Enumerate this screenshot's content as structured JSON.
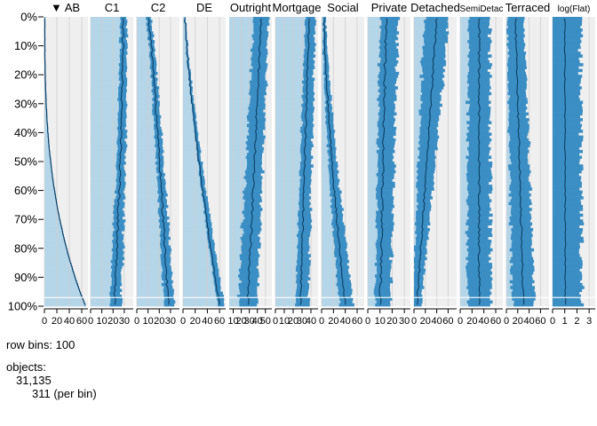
{
  "chart_data": {
    "type": "tableplot",
    "sorted_by": "AB",
    "sort_arrow": "▼",
    "row_bins": 100,
    "y_ticks": [
      "0%",
      "10%",
      "20%",
      "30%",
      "40%",
      "50%",
      "60%",
      "70%",
      "80%",
      "90%",
      "100%"
    ],
    "colors": {
      "bar": "#3a8ec4",
      "light_bar": "#b5d5e8",
      "mean_line": "#0d3e63",
      "panel_bg": "#efefef",
      "grid": "#cfcfcf",
      "white_line": "#ffffff"
    },
    "columns": [
      {
        "name": "AB",
        "ticks": [
          "0",
          "20",
          "40",
          "60"
        ],
        "domain": [
          0,
          70
        ],
        "mean_start": 0.5,
        "mean_end": 66,
        "shape": 2.8,
        "spread": 0.6,
        "sd_start": 0.5,
        "sd_end": 1,
        "noise": 0.2
      },
      {
        "name": "C1",
        "ticks": [
          "0",
          "10",
          "20",
          "30"
        ],
        "domain": [
          0,
          38
        ],
        "mean_start": 29,
        "mean_end": 21,
        "shape": 1.6,
        "spread": 0.7,
        "sd_start": 3.5,
        "sd_end": 6,
        "noise": 0.9
      },
      {
        "name": "C2",
        "ticks": [
          "0",
          "10",
          "20",
          "30"
        ],
        "domain": [
          0,
          38
        ],
        "mean_start": 10,
        "mean_end": 28,
        "shape": 0.8,
        "spread": 0.8,
        "sd_start": 2.5,
        "sd_end": 5,
        "noise": 0.9
      },
      {
        "name": "DE",
        "ticks": [
          "0",
          "20",
          "40",
          "60"
        ],
        "domain": [
          0,
          70
        ],
        "mean_start": 3,
        "mean_end": 60,
        "shape": 1.3,
        "spread": 0.4,
        "sd_start": 1.5,
        "sd_end": 8,
        "noise": 0.9
      },
      {
        "name": "Outright",
        "ticks": [
          "10",
          "20",
          "30",
          "40",
          "50"
        ],
        "domain": [
          5,
          58
        ],
        "mean_start": 45,
        "mean_end": 28,
        "shape": 1,
        "spread": 1,
        "sd_start": 9,
        "sd_end": 12,
        "noise": 1.2
      },
      {
        "name": "Mortgage",
        "ticks": [
          "0",
          "10",
          "20",
          "30",
          "40"
        ],
        "domain": [
          0,
          48
        ],
        "mean_start": 38,
        "mean_end": 28,
        "shape": 1,
        "spread": 0.6,
        "sd_start": 7,
        "sd_end": 9,
        "noise": 1.0
      },
      {
        "name": "Social",
        "ticks": [
          "0",
          "20",
          "40",
          "60"
        ],
        "domain": [
          0,
          72
        ],
        "mean_start": 4,
        "mean_end": 40,
        "shape": 1.4,
        "spread": 0.7,
        "sd_start": 3,
        "sd_end": 14,
        "noise": 1.2
      },
      {
        "name": "Private",
        "ticks": [
          "0",
          "10",
          "20",
          "30"
        ],
        "domain": [
          0,
          35
        ],
        "mean_start": 15,
        "mean_end": 10,
        "shape": 1,
        "spread": 0.5,
        "sd_start": 10,
        "sd_end": 8,
        "noise": 1.0
      },
      {
        "name": "Detached",
        "ticks": [
          "0",
          "20",
          "40",
          "60"
        ],
        "domain": [
          0,
          75
        ],
        "mean_start": 40,
        "mean_end": 5,
        "shape": 1,
        "spread": 1,
        "sd_start": 22,
        "sd_end": 8,
        "noise": 1.5
      },
      {
        "name": "SemiDetac",
        "ticks": [
          "0",
          "20",
          "40",
          "60"
        ],
        "domain": [
          0,
          72
        ],
        "mean_start": 32,
        "mean_end": 32,
        "shape": 1,
        "spread": 1,
        "sd_start": 18,
        "sd_end": 20,
        "noise": 1.5
      },
      {
        "name": "Terraced",
        "ticks": [
          "0",
          "20",
          "40",
          "60"
        ],
        "domain": [
          0,
          75
        ],
        "mean_start": 16,
        "mean_end": 30,
        "shape": 1,
        "spread": 1,
        "sd_start": 14,
        "sd_end": 20,
        "noise": 1.5
      },
      {
        "name": "log(Flat)",
        "ticks": [
          "0",
          "1",
          "2",
          "3"
        ],
        "domain": [
          0,
          3.5
        ],
        "mean_start": 1.0,
        "mean_end": 1.05,
        "shape": 1,
        "spread": 1,
        "sd_start": 1.3,
        "sd_end": 1.35,
        "noise": 0.04
      }
    ]
  },
  "info": {
    "row_bins_label": "row bins: 100",
    "objects_label": "objects:",
    "objects_count": "31,135",
    "per_bin": "311 (per bin)"
  }
}
